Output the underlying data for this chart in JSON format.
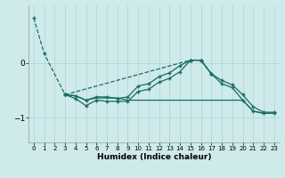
{
  "xlabel": "Humidex (Indice chaleur)",
  "bg_color": "#ceeaeb",
  "grid_color": "#aed4d5",
  "line_color": "#1a6b60",
  "xlim": [
    -0.5,
    23.5
  ],
  "ylim": [
    -1.45,
    1.05
  ],
  "yticks": [
    -1,
    0
  ],
  "xticks": [
    0,
    1,
    2,
    3,
    4,
    5,
    6,
    7,
    8,
    9,
    10,
    11,
    12,
    13,
    14,
    15,
    16,
    17,
    18,
    19,
    20,
    21,
    22,
    23
  ],
  "line1_x": [
    0,
    1,
    3,
    15,
    16,
    17
  ],
  "line1_y": [
    0.82,
    0.17,
    -0.58,
    0.05,
    0.05,
    -0.2
  ],
  "line2_x": [
    3,
    4,
    5,
    6,
    7,
    8,
    9,
    10,
    11,
    12,
    13,
    14,
    15,
    16,
    17,
    18,
    19,
    20,
    21,
    22,
    23
  ],
  "line2_y": [
    -0.58,
    -0.6,
    -0.68,
    -0.62,
    -0.62,
    -0.65,
    -0.62,
    -0.42,
    -0.38,
    -0.25,
    -0.18,
    -0.05,
    0.05,
    0.05,
    -0.2,
    -0.38,
    -0.45,
    -0.68,
    -0.88,
    -0.92,
    -0.92
  ],
  "line3_x": [
    3,
    4,
    5,
    6,
    7,
    8,
    9,
    10,
    11,
    12,
    13,
    14,
    15,
    16,
    17,
    18,
    19,
    20,
    21,
    22,
    23
  ],
  "line3_y": [
    -0.58,
    -0.65,
    -0.78,
    -0.68,
    -0.7,
    -0.7,
    -0.7,
    -0.52,
    -0.48,
    -0.35,
    -0.28,
    -0.16,
    0.05,
    0.05,
    -0.2,
    -0.32,
    -0.4,
    -0.58,
    -0.8,
    -0.9,
    -0.9
  ],
  "line4_x": [
    3,
    4,
    5,
    6,
    7,
    8,
    9,
    10,
    11,
    12,
    13,
    14,
    15,
    16,
    17,
    18,
    19,
    20,
    21,
    22,
    23
  ],
  "line4_y": [
    -0.58,
    -0.6,
    -0.68,
    -0.64,
    -0.64,
    -0.64,
    -0.68,
    -0.68,
    -0.68,
    -0.68,
    -0.68,
    -0.68,
    -0.68,
    -0.68,
    -0.68,
    -0.68,
    -0.68,
    -0.68,
    -0.88,
    -0.92,
    -0.92
  ]
}
